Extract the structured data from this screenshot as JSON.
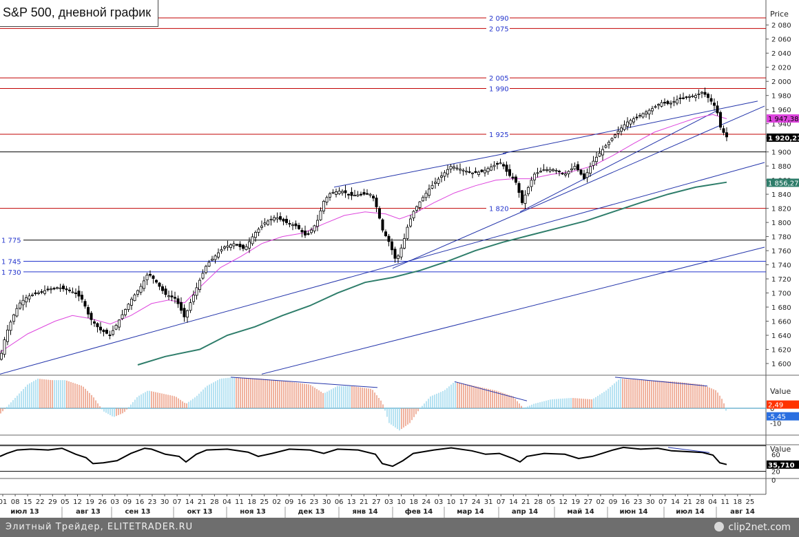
{
  "title": "S&P 500, дневной график",
  "footer": {
    "left": "Элитный Трейдер, ELITETRADER.RU",
    "right": "clip2net.com"
  },
  "colors": {
    "red_level": "#c00000",
    "blue_level": "#2233cc",
    "black_level": "#000000",
    "ma_fast": "#dd44dd",
    "ma_slow": "#2e7d6a",
    "trendline": "#2233aa",
    "hist_pos": "#8fd3ea",
    "hist_neg": "#e8896a",
    "osc": "#000000"
  },
  "chart_data": [
    {
      "type": "candlestick",
      "axis_title": "Price",
      "y_ticks": [
        "2 080",
        "2 060",
        "2 040",
        "2 020",
        "2 000",
        "1 980",
        "1 960",
        "1 940",
        "1 920",
        "1 900",
        "1 880",
        "1 860",
        "1 840",
        "1 820",
        "1 800",
        "1 780",
        "1 760",
        "1 740",
        "1 720",
        "1 700",
        "1 680",
        "1 660",
        "1 640",
        "1 620",
        "1 600"
      ],
      "ylim": [
        1595,
        2100
      ],
      "levels": [
        {
          "value": 2090,
          "label": "2 090",
          "color": "red"
        },
        {
          "value": 2075,
          "label": "2 075",
          "color": "red"
        },
        {
          "value": 2005,
          "label": "2 005",
          "color": "red"
        },
        {
          "value": 1990,
          "label": "1 990",
          "color": "red"
        },
        {
          "value": 1925,
          "label": "1 925",
          "color": "red"
        },
        {
          "value": 1900,
          "label": "",
          "color": "black"
        },
        {
          "value": 1820,
          "label": "1 820",
          "color": "red"
        },
        {
          "value": 1775,
          "label": "1 775",
          "color": "black"
        },
        {
          "value": 1745,
          "label": "1 745",
          "color": "blue"
        },
        {
          "value": 1730,
          "label": "1 730",
          "color": "blue"
        }
      ],
      "price_badges": [
        {
          "label": "1 947,38",
          "value": 1947.38,
          "style": "magenta"
        },
        {
          "label": "1 920,21",
          "value": 1920.21,
          "style": "black"
        },
        {
          "label": "1 856,27",
          "value": 1856.27,
          "style": "teal"
        }
      ],
      "close_path": [
        [
          0,
          1606
        ],
        [
          8,
          1640
        ],
        [
          18,
          1665
        ],
        [
          28,
          1685
        ],
        [
          40,
          1695
        ],
        [
          55,
          1700
        ],
        [
          70,
          1705
        ],
        [
          85,
          1708
        ],
        [
          95,
          1705
        ],
        [
          110,
          1700
        ],
        [
          120,
          1690
        ],
        [
          130,
          1665
        ],
        [
          145,
          1648
        ],
        [
          160,
          1640
        ],
        [
          175,
          1665
        ],
        [
          190,
          1690
        ],
        [
          205,
          1710
        ],
        [
          215,
          1728
        ],
        [
          225,
          1718
        ],
        [
          240,
          1698
        ],
        [
          255,
          1692
        ],
        [
          268,
          1665
        ],
        [
          278,
          1690
        ],
        [
          290,
          1718
        ],
        [
          300,
          1740
        ],
        [
          312,
          1752
        ],
        [
          325,
          1765
        ],
        [
          340,
          1770
        ],
        [
          355,
          1762
        ],
        [
          370,
          1785
        ],
        [
          385,
          1800
        ],
        [
          400,
          1808
        ],
        [
          415,
          1800
        ],
        [
          430,
          1795
        ],
        [
          445,
          1780
        ],
        [
          460,
          1800
        ],
        [
          470,
          1830
        ],
        [
          480,
          1842
        ],
        [
          495,
          1845
        ],
        [
          510,
          1838
        ],
        [
          525,
          1840
        ],
        [
          540,
          1840
        ],
        [
          548,
          1818
        ],
        [
          555,
          1790
        ],
        [
          565,
          1772
        ],
        [
          575,
          1745
        ],
        [
          585,
          1770
        ],
        [
          592,
          1795
        ],
        [
          600,
          1815
        ],
        [
          610,
          1830
        ],
        [
          625,
          1850
        ],
        [
          640,
          1865
        ],
        [
          655,
          1880
        ],
        [
          670,
          1875
        ],
        [
          685,
          1870
        ],
        [
          700,
          1872
        ],
        [
          715,
          1880
        ],
        [
          728,
          1885
        ],
        [
          738,
          1868
        ],
        [
          748,
          1860
        ],
        [
          758,
          1828
        ],
        [
          765,
          1845
        ],
        [
          775,
          1868
        ],
        [
          790,
          1875
        ],
        [
          805,
          1875
        ],
        [
          820,
          1868
        ],
        [
          835,
          1880
        ],
        [
          848,
          1862
        ],
        [
          860,
          1885
        ],
        [
          872,
          1900
        ],
        [
          885,
          1915
        ],
        [
          898,
          1930
        ],
        [
          910,
          1942
        ],
        [
          922,
          1948
        ],
        [
          935,
          1955
        ],
        [
          948,
          1962
        ],
        [
          960,
          1970
        ],
        [
          972,
          1968
        ],
        [
          985,
          1975
        ],
        [
          998,
          1978
        ],
        [
          1010,
          1980
        ],
        [
          1020,
          1985
        ],
        [
          1030,
          1975
        ],
        [
          1040,
          1962
        ],
        [
          1046,
          1935
        ],
        [
          1052,
          1925
        ],
        [
          1056,
          1920
        ]
      ],
      "ma_fast_path": [
        [
          0,
          1616
        ],
        [
          40,
          1642
        ],
        [
          80,
          1660
        ],
        [
          105,
          1668
        ],
        [
          130,
          1664
        ],
        [
          160,
          1656
        ],
        [
          190,
          1668
        ],
        [
          220,
          1685
        ],
        [
          245,
          1690
        ],
        [
          268,
          1686
        ],
        [
          290,
          1708
        ],
        [
          320,
          1736
        ],
        [
          350,
          1752
        ],
        [
          380,
          1770
        ],
        [
          410,
          1780
        ],
        [
          440,
          1785
        ],
        [
          470,
          1798
        ],
        [
          500,
          1810
        ],
        [
          530,
          1815
        ],
        [
          560,
          1812
        ],
        [
          580,
          1805
        ],
        [
          600,
          1812
        ],
        [
          630,
          1828
        ],
        [
          660,
          1842
        ],
        [
          690,
          1852
        ],
        [
          720,
          1860
        ],
        [
          745,
          1862
        ],
        [
          770,
          1862
        ],
        [
          800,
          1868
        ],
        [
          830,
          1872
        ],
        [
          860,
          1880
        ],
        [
          890,
          1895
        ],
        [
          920,
          1912
        ],
        [
          950,
          1928
        ],
        [
          980,
          1938
        ],
        [
          1010,
          1948
        ],
        [
          1035,
          1953
        ],
        [
          1055,
          1947
        ]
      ],
      "ma_slow_path": [
        [
          200,
          1598
        ],
        [
          240,
          1610
        ],
        [
          290,
          1620
        ],
        [
          330,
          1640
        ],
        [
          370,
          1652
        ],
        [
          410,
          1668
        ],
        [
          450,
          1682
        ],
        [
          490,
          1700
        ],
        [
          530,
          1715
        ],
        [
          570,
          1722
        ],
        [
          610,
          1732
        ],
        [
          650,
          1745
        ],
        [
          690,
          1760
        ],
        [
          730,
          1772
        ],
        [
          770,
          1782
        ],
        [
          810,
          1792
        ],
        [
          850,
          1802
        ],
        [
          890,
          1815
        ],
        [
          930,
          1828
        ],
        [
          970,
          1840
        ],
        [
          1010,
          1850
        ],
        [
          1055,
          1857
        ]
      ],
      "trendlines": [
        [
          [
            0,
            1585
          ],
          [
            1110,
            1885
          ]
        ],
        [
          [
            380,
            1585
          ],
          [
            1110,
            1765
          ]
        ],
        [
          [
            570,
            1735
          ],
          [
            1110,
            1965
          ]
        ],
        [
          [
            755,
            1815
          ],
          [
            1040,
            1958
          ]
        ],
        [
          [
            485,
            1850
          ],
          [
            735,
            1898
          ]
        ],
        [
          [
            730,
            1898
          ],
          [
            1100,
            1972
          ]
        ]
      ],
      "x_ticks": [
        "01",
        "08",
        "15",
        "22",
        "29",
        "05",
        "12",
        "19",
        "26",
        "03",
        "09",
        "16",
        "23",
        "30",
        "07",
        "14",
        "21",
        "28",
        "04",
        "11",
        "18",
        "25",
        "02",
        "09",
        "16",
        "23",
        "30",
        "06",
        "13",
        "21",
        "27",
        "03",
        "10",
        "18",
        "24",
        "03",
        "10",
        "17",
        "24",
        "31",
        "07",
        "14",
        "21",
        "28",
        "05",
        "12",
        "19",
        "27",
        "02",
        "09",
        "16",
        "23",
        "30",
        "07",
        "14",
        "21",
        "28",
        "04",
        "11",
        "18",
        "25"
      ],
      "month_labels": [
        "июл 13",
        "авг 13",
        "сен 13",
        "окт 13",
        "ноя 13",
        "дек 13",
        "янв 14",
        "фев 14",
        "мар 14",
        "апр 14",
        "май 14",
        "июн 14",
        "июл 14",
        "авг 14"
      ]
    },
    {
      "type": "histogram",
      "axis_title": "Value",
      "y_ticks": [
        "0",
        "-10"
      ],
      "ylim": [
        -16,
        24
      ],
      "badges": [
        {
          "label": "2,49",
          "value": 2.49,
          "style": "red"
        },
        {
          "label": "-5,45",
          "value": -5.45,
          "style": "blue"
        }
      ],
      "envelope": [
        [
          0,
          -4
        ],
        [
          20,
          6
        ],
        [
          40,
          16
        ],
        [
          55,
          20
        ],
        [
          75,
          19
        ],
        [
          95,
          19
        ],
        [
          120,
          15
        ],
        [
          135,
          8
        ],
        [
          150,
          -2
        ],
        [
          165,
          -6
        ],
        [
          180,
          -3
        ],
        [
          200,
          8
        ],
        [
          215,
          12
        ],
        [
          235,
          10
        ],
        [
          255,
          8
        ],
        [
          270,
          3
        ],
        [
          285,
          8
        ],
        [
          300,
          15
        ],
        [
          320,
          20
        ],
        [
          340,
          21
        ],
        [
          380,
          20
        ],
        [
          420,
          18
        ],
        [
          450,
          16
        ],
        [
          470,
          10
        ],
        [
          490,
          15
        ],
        [
          510,
          15
        ],
        [
          540,
          13
        ],
        [
          555,
          4
        ],
        [
          565,
          -10
        ],
        [
          580,
          -15
        ],
        [
          595,
          -10
        ],
        [
          610,
          0
        ],
        [
          625,
          8
        ],
        [
          645,
          12
        ],
        [
          660,
          18
        ],
        [
          690,
          15
        ],
        [
          720,
          12
        ],
        [
          745,
          8
        ],
        [
          760,
          0
        ],
        [
          775,
          3
        ],
        [
          800,
          6
        ],
        [
          830,
          7
        ],
        [
          860,
          6
        ],
        [
          880,
          12
        ],
        [
          900,
          20
        ],
        [
          940,
          19
        ],
        [
          980,
          18
        ],
        [
          1020,
          16
        ],
        [
          1040,
          12
        ],
        [
          1050,
          5
        ],
        [
          1056,
          -5
        ]
      ],
      "divergence_lines": [
        [
          [
            335,
            21
          ],
          [
            548,
            14
          ]
        ],
        [
          [
            660,
            18
          ],
          [
            765,
            5
          ]
        ],
        [
          [
            893,
            21
          ],
          [
            1027,
            15
          ]
        ]
      ]
    },
    {
      "type": "line",
      "axis_title": "Value",
      "y_ticks": [
        "60",
        "20",
        "0"
      ],
      "ylim": [
        -5,
        100
      ],
      "badge": {
        "label": "35,710",
        "value": 35.71
      },
      "levels": [
        80,
        20
      ],
      "path": [
        [
          0,
          55
        ],
        [
          10,
          62
        ],
        [
          25,
          70
        ],
        [
          45,
          72
        ],
        [
          70,
          70
        ],
        [
          90,
          74
        ],
        [
          110,
          60
        ],
        [
          125,
          52
        ],
        [
          135,
          38
        ],
        [
          150,
          40
        ],
        [
          170,
          45
        ],
        [
          190,
          62
        ],
        [
          210,
          74
        ],
        [
          220,
          72
        ],
        [
          240,
          60
        ],
        [
          260,
          55
        ],
        [
          270,
          42
        ],
        [
          285,
          60
        ],
        [
          300,
          70
        ],
        [
          330,
          72
        ],
        [
          360,
          65
        ],
        [
          375,
          55
        ],
        [
          395,
          62
        ],
        [
          420,
          72
        ],
        [
          450,
          70
        ],
        [
          470,
          62
        ],
        [
          490,
          72
        ],
        [
          520,
          70
        ],
        [
          545,
          60
        ],
        [
          555,
          38
        ],
        [
          570,
          32
        ],
        [
          585,
          45
        ],
        [
          600,
          62
        ],
        [
          630,
          70
        ],
        [
          655,
          75
        ],
        [
          685,
          68
        ],
        [
          705,
          60
        ],
        [
          725,
          62
        ],
        [
          745,
          50
        ],
        [
          755,
          42
        ],
        [
          765,
          55
        ],
        [
          790,
          62
        ],
        [
          820,
          60
        ],
        [
          840,
          50
        ],
        [
          860,
          55
        ],
        [
          890,
          70
        ],
        [
          905,
          76
        ],
        [
          930,
          72
        ],
        [
          955,
          74
        ],
        [
          975,
          68
        ],
        [
          1000,
          66
        ],
        [
          1020,
          64
        ],
        [
          1035,
          58
        ],
        [
          1045,
          40
        ],
        [
          1055,
          36
        ]
      ],
      "divergence_line": [
        [
          970,
          76
        ],
        [
          1030,
          64
        ]
      ]
    }
  ]
}
